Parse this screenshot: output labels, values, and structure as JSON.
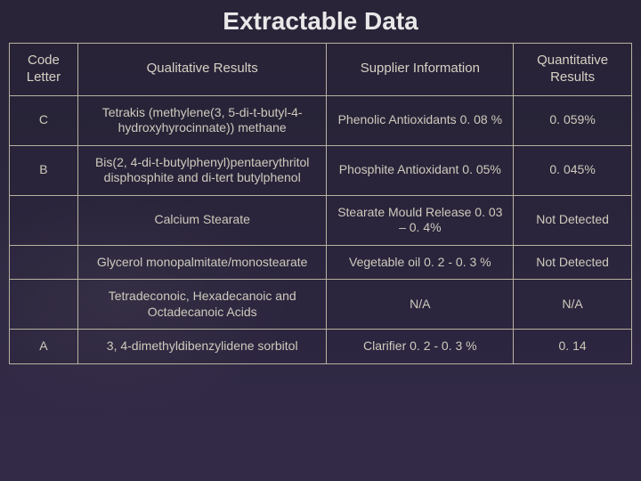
{
  "title": "Extractable Data",
  "table": {
    "columns": [
      {
        "label": "Code Letter",
        "width": "11%"
      },
      {
        "label": "Qualitative Results",
        "width": "40%"
      },
      {
        "label": "Supplier Information",
        "width": "30%"
      },
      {
        "label": "Quantitative Results",
        "width": "19%"
      }
    ],
    "rows": [
      {
        "code": "C",
        "qualitative": "Tetrakis (methylene(3, 5-di-t-butyl-4-hydroxyhyrocinnate)) methane",
        "supplier": "Phenolic Antioxidants 0. 08 %",
        "quant": "0. 059%"
      },
      {
        "code": "B",
        "qualitative": "Bis(2, 4-di-t-butylphenyl)pentaerythritol disphosphite and di-tert butylphenol",
        "supplier": "Phosphite Antioxidant 0. 05%",
        "quant": "0. 045%"
      },
      {
        "code": "",
        "qualitative": "Calcium Stearate",
        "supplier": "Stearate Mould Release 0. 03 – 0. 4%",
        "quant": "Not Detected"
      },
      {
        "code": "",
        "qualitative": "Glycerol monopalmitate/monostearate",
        "supplier": "Vegetable oil 0. 2 - 0. 3 %",
        "quant": "Not Detected"
      },
      {
        "code": "",
        "qualitative": "Tetradeconoic, Hexadecanoic  and Octadecanoic Acids",
        "supplier": "N/A",
        "quant": "N/A"
      },
      {
        "code": "A",
        "qualitative": "3, 4-dimethyldibenzylidene sorbitol",
        "supplier": "Clarifier 0. 2 - 0. 3 %",
        "quant": "0. 14"
      }
    ]
  },
  "colors": {
    "background": "#2a2438",
    "text": "#cfcabc",
    "title": "#e8e8e8",
    "border": "#b8b2a0"
  },
  "typography": {
    "title_fontsize": 28,
    "header_fontsize": 15,
    "cell_fontsize": 14,
    "font_family": "Tahoma"
  }
}
